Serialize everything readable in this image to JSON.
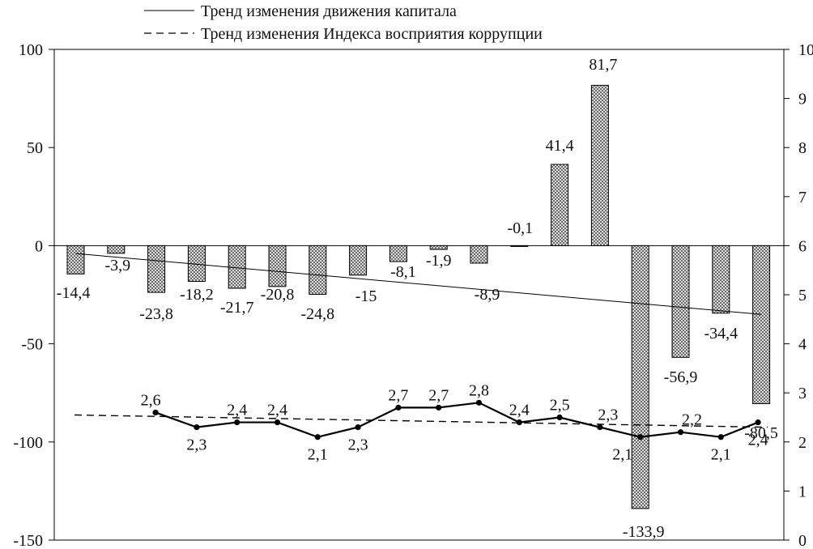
{
  "chart_data": {
    "type": "bar",
    "title": "",
    "xlabel": "",
    "ylabel": "",
    "ylim": [
      -150,
      100
    ],
    "y2lim": [
      0,
      10
    ],
    "y_ticks": [
      "100",
      "50",
      "0",
      "-50",
      "-100",
      "-150"
    ],
    "y2_ticks": [
      "10",
      "9",
      "8",
      "7",
      "6",
      "5",
      "4",
      "3",
      "2",
      "1",
      "0"
    ],
    "grid": false,
    "legend": {
      "placement": "top",
      "entries": [
        {
          "label": "Тренд изменения движения капитала",
          "style": "solid"
        },
        {
          "label": "Тренд изменения Индекса восприятия коррупции",
          "style": "dashed"
        }
      ]
    },
    "bars": {
      "axis": "left",
      "values": [
        -14.4,
        -3.9,
        -23.8,
        -18.2,
        -21.7,
        -20.8,
        -24.8,
        -15,
        -8.1,
        -1.9,
        -8.9,
        -0.1,
        41.4,
        81.7,
        -133.9,
        -56.9,
        -34.4,
        -80.5
      ],
      "labels": [
        "-14,4",
        "-3,9",
        "-23,8",
        "-18,2",
        "-21,7",
        "-20,8",
        "-24,8",
        "-15",
        "-8,1",
        "-1,9",
        "-8,9",
        "-0,1",
        "41,4",
        "81,7",
        "-133,9",
        "-56,9",
        "-34,4",
        "-80,5"
      ]
    },
    "line": {
      "axis": "right",
      "values": [
        2.6,
        2.3,
        2.4,
        2.4,
        2.1,
        2.3,
        2.7,
        2.7,
        2.8,
        2.4,
        2.5,
        2.3,
        2.1,
        2.2,
        2.1,
        2.4
      ],
      "labels": [
        "2,6",
        "2,3",
        "2,4",
        "2,4",
        "2,1",
        "2,3",
        "2,7",
        "2,7",
        "2,8",
        "2,4",
        "2,5",
        "2,3",
        "2,1",
        "2,2",
        "2,1",
        "2,4"
      ]
    },
    "trend_capital": {
      "axis": "left",
      "start": -4,
      "end": -35
    },
    "trend_cpi": {
      "axis": "right",
      "start": 2.55,
      "end": 2.3
    }
  }
}
